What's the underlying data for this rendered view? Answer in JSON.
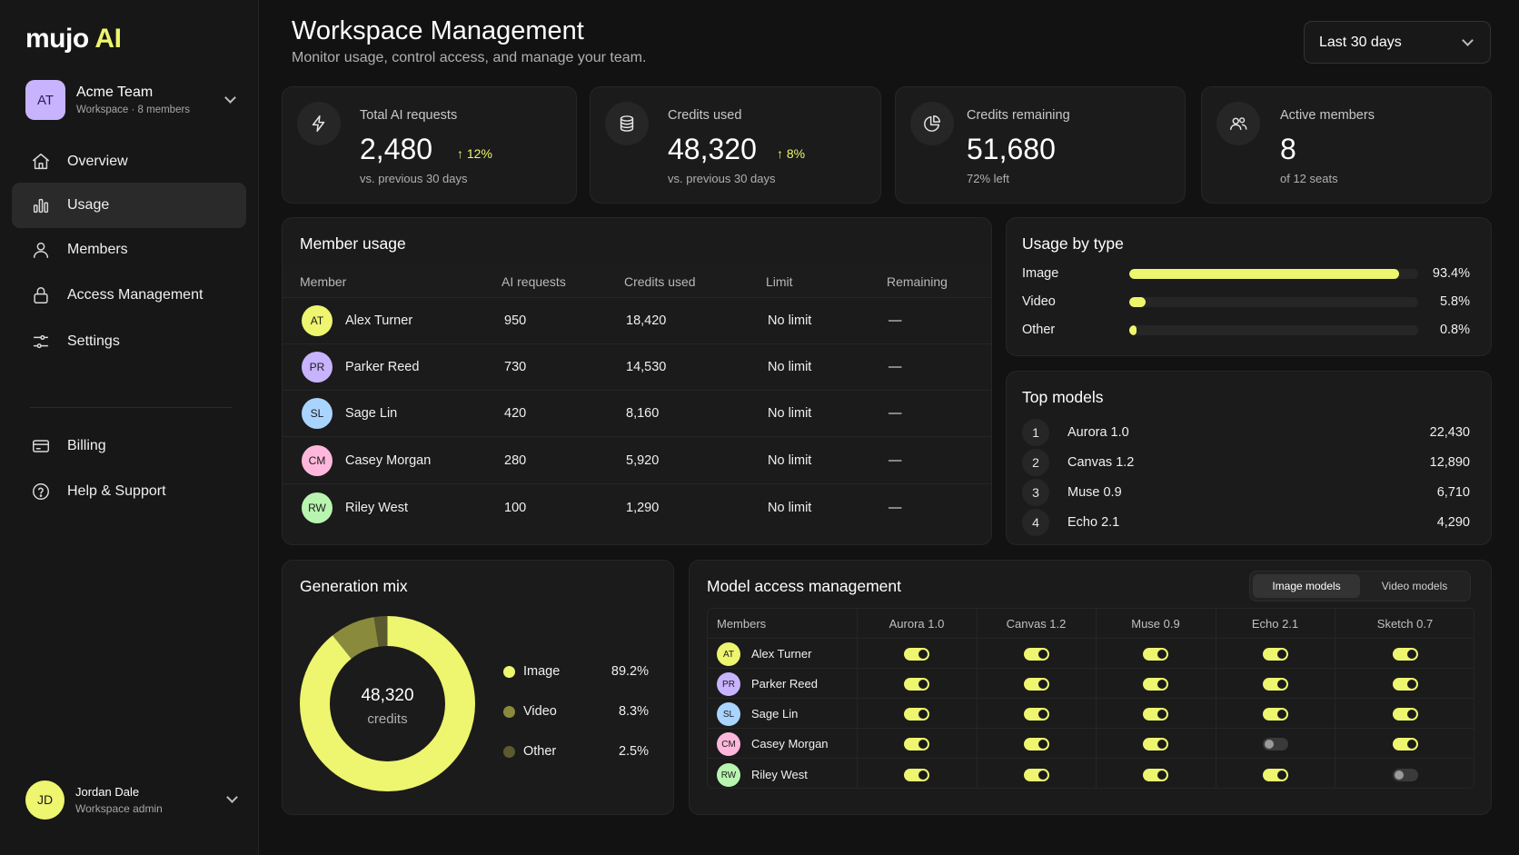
{
  "brand": {
    "name": "mujo",
    "accent": "AI"
  },
  "team": {
    "initials": "AT",
    "name": "Acme Team",
    "sub": "Workspace · 8 members"
  },
  "nav": [
    {
      "key": "overview",
      "label": "Overview",
      "icon": "home-icon",
      "active": false
    },
    {
      "key": "usage",
      "label": "Usage",
      "icon": "bar-chart-icon",
      "active": true
    },
    {
      "key": "members",
      "label": "Members",
      "icon": "user-icon",
      "active": false
    },
    {
      "key": "access",
      "label": "Access Management",
      "icon": "lock-icon",
      "active": false
    },
    {
      "key": "settings",
      "label": "Settings",
      "icon": "sliders-icon",
      "active": false
    },
    {
      "key": "billing",
      "label": "Billing",
      "icon": "credit-card-icon",
      "active": false
    },
    {
      "key": "help",
      "label": "Help & Support",
      "icon": "help-circle-icon",
      "active": false
    }
  ],
  "user": {
    "initials": "JD",
    "name": "Jordan Dale",
    "role": "Workspace admin"
  },
  "header": {
    "title": "Workspace Management",
    "subtitle": "Monitor usage, control access, and manage your team.",
    "range": "Last 30 days"
  },
  "stats": [
    {
      "label": "Total AI requests",
      "value": "2,480",
      "delta": "12%",
      "sub": "vs. previous 30 days",
      "icon": "lightning-icon"
    },
    {
      "label": "Credits used",
      "value": "48,320",
      "delta": "8%",
      "sub": "vs. previous 30 days",
      "icon": "database-icon"
    },
    {
      "label": "Credits remaining",
      "value": "51,680",
      "delta": "",
      "sub": "72% left",
      "icon": "pie-chart-icon"
    },
    {
      "label": "Active members",
      "value": "8",
      "delta": "",
      "sub": "of 12 seats",
      "icon": "users-icon"
    }
  ],
  "member_usage": {
    "title": "Member usage",
    "columns": [
      "Member",
      "AI requests",
      "Credits used",
      "Limit",
      "Remaining"
    ],
    "rows": [
      {
        "initials": "AT",
        "name": "Alex Turner",
        "requests": "950",
        "credits": "18,420",
        "limit": "No limit",
        "remaining": "—",
        "color": "#eef56e"
      },
      {
        "initials": "PR",
        "name": "Parker Reed",
        "requests": "730",
        "credits": "14,530",
        "limit": "No limit",
        "remaining": "—",
        "color": "#c8b3ff"
      },
      {
        "initials": "SL",
        "name": "Sage Lin",
        "requests": "420",
        "credits": "8,160",
        "limit": "No limit",
        "remaining": "—",
        "color": "#a9d4ff"
      },
      {
        "initials": "CM",
        "name": "Casey Morgan",
        "requests": "280",
        "credits": "5,920",
        "limit": "No limit",
        "remaining": "—",
        "color": "#ffb8dc"
      },
      {
        "initials": "RW",
        "name": "Riley West",
        "requests": "100",
        "credits": "1,290",
        "limit": "No limit",
        "remaining": "—",
        "color": "#b8f5b0"
      }
    ]
  },
  "usage_by_type": {
    "title": "Usage by type",
    "items": [
      {
        "label": "Image",
        "value": "93.4%",
        "fraction": 0.934
      },
      {
        "label": "Video",
        "value": "5.8%",
        "fraction": 0.058
      },
      {
        "label": "Other",
        "value": "0.8%",
        "fraction": 0.008
      }
    ]
  },
  "top_models": {
    "title": "Top models",
    "items": [
      {
        "rank": "1",
        "name": "Aurora 1.0",
        "value": "22,430"
      },
      {
        "rank": "2",
        "name": "Canvas 1.2",
        "value": "12,890"
      },
      {
        "rank": "3",
        "name": "Muse 0.9",
        "value": "6,710"
      },
      {
        "rank": "4",
        "name": "Echo 2.1",
        "value": "4,290"
      }
    ]
  },
  "generation_mix": {
    "title": "Generation mix",
    "center_value": "48,320",
    "center_label": "credits",
    "items": [
      {
        "label": "Image",
        "value": "89.2%",
        "fraction": 0.892,
        "color": "#eef56e"
      },
      {
        "label": "Video",
        "value": "8.3%",
        "fraction": 0.083,
        "color": "#8a8a3c"
      },
      {
        "label": "Other",
        "value": "2.5%",
        "fraction": 0.025,
        "color": "#5a5a2e"
      }
    ]
  },
  "model_access": {
    "title": "Model access management",
    "tabs": [
      {
        "label": "Image models",
        "active": true
      },
      {
        "label": "Video models",
        "active": false
      }
    ],
    "members_header": "Members",
    "models": [
      "Aurora 1.0",
      "Canvas 1.2",
      "Muse 0.9",
      "Echo 2.1",
      "Sketch 0.7"
    ],
    "rows": [
      {
        "initials": "AT",
        "name": "Alex Turner",
        "color": "#eef56e",
        "access": [
          true,
          true,
          true,
          true,
          true
        ]
      },
      {
        "initials": "PR",
        "name": "Parker Reed",
        "color": "#c8b3ff",
        "access": [
          true,
          true,
          true,
          true,
          true
        ]
      },
      {
        "initials": "SL",
        "name": "Sage Lin",
        "color": "#a9d4ff",
        "access": [
          true,
          true,
          true,
          true,
          true
        ]
      },
      {
        "initials": "CM",
        "name": "Casey Morgan",
        "color": "#ffb8dc",
        "access": [
          true,
          true,
          true,
          false,
          true
        ]
      },
      {
        "initials": "RW",
        "name": "Riley West",
        "color": "#b8f5b0",
        "access": [
          true,
          true,
          true,
          true,
          false
        ]
      }
    ]
  }
}
